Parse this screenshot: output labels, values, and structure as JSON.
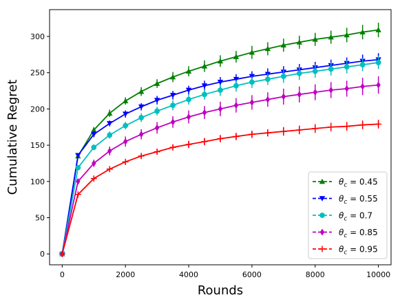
{
  "chart_data": {
    "type": "line",
    "title": "",
    "xlabel": "Rounds",
    "ylabel": "Cumulative Regret",
    "xlim": [
      -400,
      10400
    ],
    "ylim": [
      -15,
      337
    ],
    "x_ticks": [
      0,
      2000,
      4000,
      6000,
      8000,
      10000
    ],
    "y_ticks": [
      0,
      50,
      100,
      150,
      200,
      250,
      300
    ],
    "grid": false,
    "legend_position": "lower-right",
    "x": [
      0,
      500,
      1000,
      1500,
      2000,
      2500,
      3000,
      3500,
      4000,
      4500,
      5000,
      5500,
      6000,
      6500,
      7000,
      7500,
      8000,
      8500,
      9000,
      9500,
      10000
    ],
    "series": [
      {
        "name": "θc = 0.45",
        "legend_label": {
          "prefix": "θ",
          "sub": "c",
          "suffix": " = 0.45"
        },
        "color": "#008000",
        "marker": "triangle-up",
        "values": [
          0,
          135,
          171,
          194,
          211,
          224,
          235,
          244,
          252,
          259,
          266,
          272,
          278,
          283,
          288,
          292,
          296,
          299,
          302,
          306,
          309
        ],
        "errors": [
          0,
          3,
          4,
          5,
          5,
          6,
          6,
          7,
          7,
          8,
          8,
          8,
          9,
          9,
          9,
          9,
          9,
          9,
          10,
          10,
          10
        ]
      },
      {
        "name": "θc = 0.55",
        "legend_label": {
          "prefix": "θ",
          "sub": "c",
          "suffix": " = 0.55"
        },
        "color": "#0000ff",
        "marker": "triangle-down",
        "values": [
          0,
          136,
          165,
          180,
          193,
          203,
          212,
          219,
          226,
          232,
          237,
          241,
          245,
          248,
          251,
          254,
          257,
          260,
          263,
          266,
          268
        ],
        "errors": [
          0,
          3,
          4,
          4,
          5,
          5,
          6,
          6,
          6,
          7,
          7,
          7,
          7,
          8,
          8,
          8,
          8,
          8,
          8,
          9,
          9
        ]
      },
      {
        "name": "θc = 0.7",
        "legend_label": {
          "prefix": "θ",
          "sub": "c",
          "suffix": " = 0.7"
        },
        "color": "#00bfbf",
        "marker": "circle",
        "values": [
          0,
          119,
          147,
          164,
          177,
          188,
          197,
          205,
          213,
          220,
          226,
          232,
          237,
          241,
          245,
          249,
          252,
          255,
          258,
          261,
          264
        ],
        "errors": [
          0,
          3,
          4,
          5,
          5,
          6,
          6,
          7,
          7,
          7,
          8,
          8,
          8,
          8,
          9,
          9,
          9,
          9,
          9,
          9,
          9
        ]
      },
      {
        "name": "θc = 0.85",
        "legend_label": {
          "prefix": "θ",
          "sub": "c",
          "suffix": " = 0.85"
        },
        "color": "#bf00bf",
        "marker": "thin-diamond",
        "values": [
          0,
          100,
          125,
          142,
          155,
          165,
          174,
          182,
          189,
          195,
          200,
          205,
          209,
          213,
          217,
          220,
          223,
          226,
          228,
          231,
          233
        ],
        "errors": [
          0,
          4,
          5,
          6,
          7,
          7,
          8,
          8,
          9,
          9,
          10,
          10,
          10,
          10,
          11,
          11,
          11,
          11,
          11,
          12,
          12
        ]
      },
      {
        "name": "θc = 0.95",
        "legend_label": {
          "prefix": "θ",
          "sub": "c",
          "suffix": " = 0.95"
        },
        "color": "#ff0000",
        "marker": "plus",
        "values": [
          0,
          82,
          104,
          117,
          127,
          135,
          141,
          147,
          151,
          155,
          159,
          162,
          165,
          167,
          169,
          171,
          173,
          175,
          176,
          178,
          179
        ],
        "errors": [
          0,
          2,
          3,
          3,
          4,
          4,
          4,
          4,
          5,
          5,
          5,
          5,
          5,
          5,
          6,
          6,
          6,
          6,
          6,
          6,
          6
        ]
      }
    ]
  }
}
